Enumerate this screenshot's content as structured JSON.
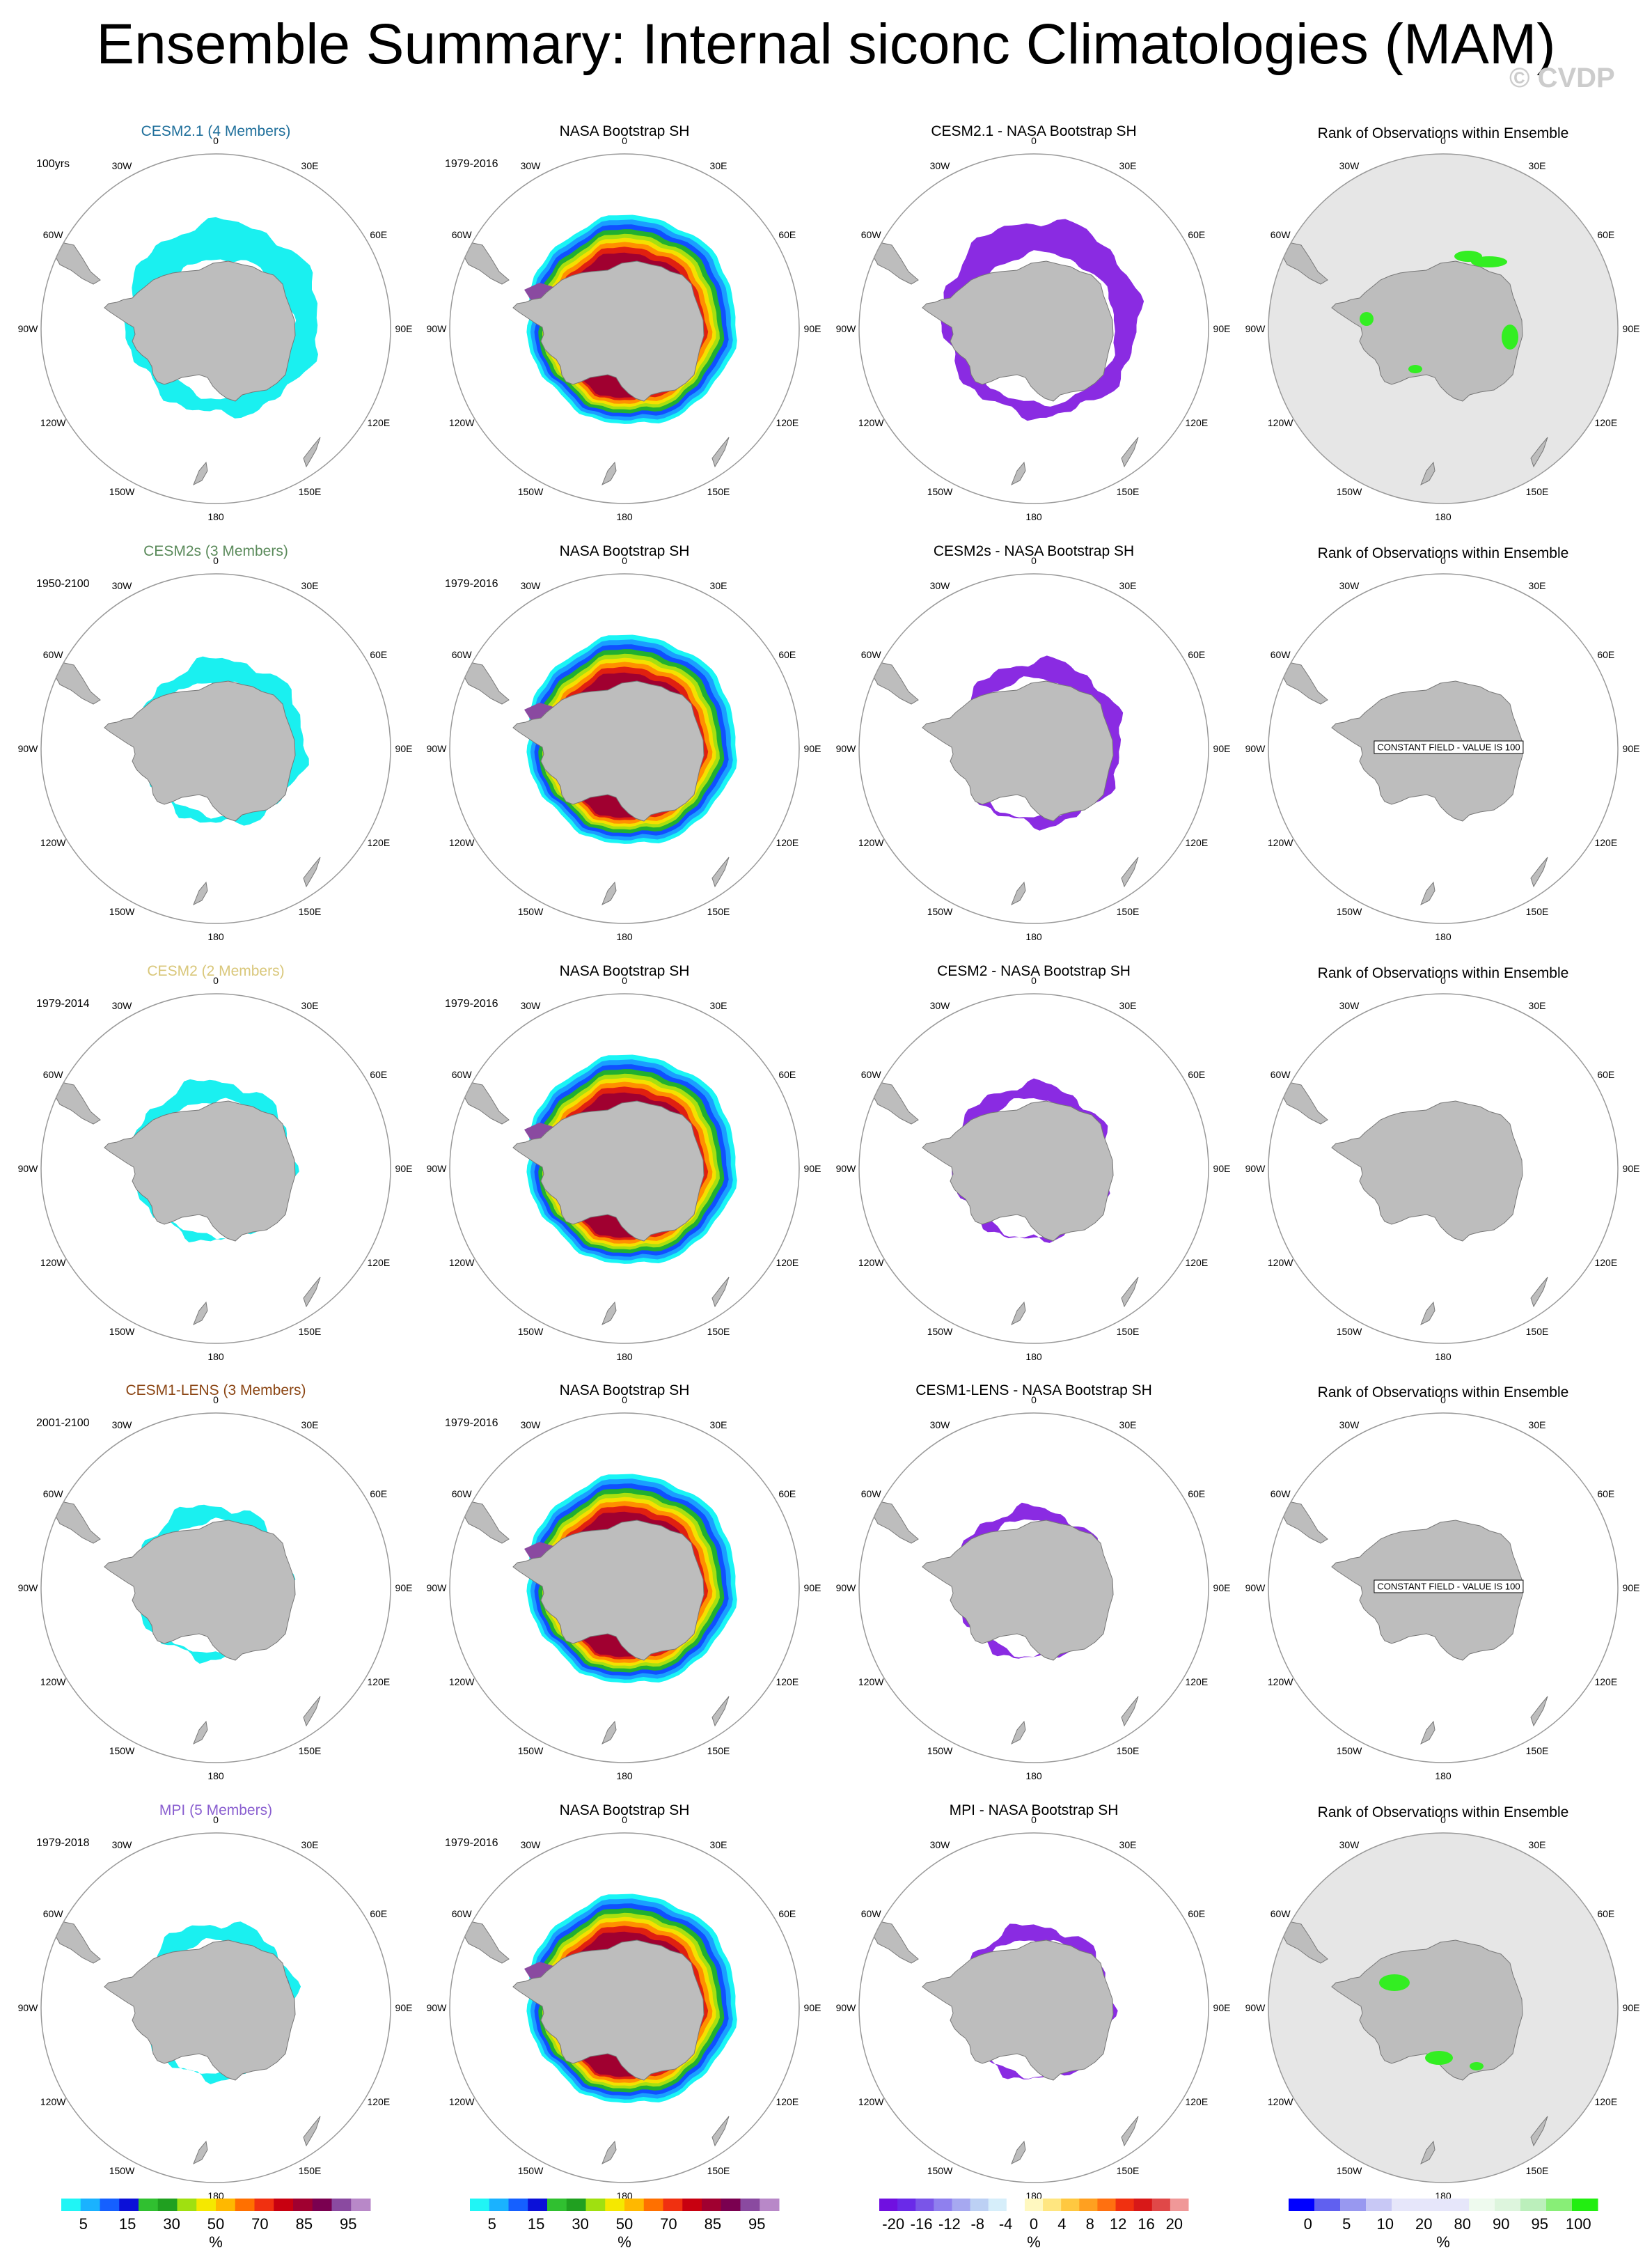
{
  "title": "Ensemble Summary: Internal siconc Climatologies (MAM)",
  "watermark": "© CVDP",
  "lon_labels": [
    "0",
    "30E",
    "60E",
    "90E",
    "120E",
    "150E",
    "180",
    "150W",
    "120W",
    "90W",
    "60W",
    "30W"
  ],
  "colors": {
    "land": "#bdbdbd",
    "rank_background": "#e6e6e6",
    "rank_green": "#33ee22",
    "model_cyan": "#1af0f0",
    "diff_purple": "#8a2be2"
  },
  "rows": [
    {
      "model_title": "CESM2.1 (4 Members)",
      "model_color": "#1f6f9b",
      "model_period": "100yrs",
      "obs_title": "NASA Bootstrap SH",
      "obs_period": "1979-2016",
      "diff_title": "CESM2.1 - NASA Bootstrap SH",
      "rank_title": "Rank of Observations within Ensemble",
      "rank_constant_text": "",
      "rank_filled": true
    },
    {
      "model_title": "CESM2s (3 Members)",
      "model_color": "#5a8a5a",
      "model_period": "1950-2100",
      "obs_title": "NASA Bootstrap SH",
      "obs_period": "1979-2016",
      "diff_title": "CESM2s - NASA Bootstrap SH",
      "rank_title": "Rank of Observations within Ensemble",
      "rank_constant_text": "CONSTANT FIELD - VALUE IS 100",
      "rank_filled": false
    },
    {
      "model_title": "CESM2 (2 Members)",
      "model_color": "#d9c77a",
      "model_period": "1979-2014",
      "obs_title": "NASA Bootstrap SH",
      "obs_period": "1979-2016",
      "diff_title": "CESM2 - NASA Bootstrap SH",
      "rank_title": "Rank of Observations within Ensemble",
      "rank_constant_text": "",
      "rank_filled": false
    },
    {
      "model_title": "CESM1-LENS (3 Members)",
      "model_color": "#8b4513",
      "model_period": "2001-2100",
      "obs_title": "NASA Bootstrap SH",
      "obs_period": "1979-2016",
      "diff_title": "CESM1-LENS - NASA Bootstrap SH",
      "rank_title": "Rank of Observations within Ensemble",
      "rank_constant_text": "CONSTANT FIELD - VALUE IS 100",
      "rank_filled": false
    },
    {
      "model_title": "MPI (5 Members)",
      "model_color": "#8a5fd0",
      "model_period": "1979-2018",
      "obs_title": "NASA Bootstrap SH",
      "obs_period": "1979-2016",
      "diff_title": "MPI - NASA Bootstrap SH",
      "rank_title": "Rank of Observations within Ensemble",
      "rank_constant_text": "",
      "rank_filled": true
    }
  ],
  "colorbars": [
    {
      "colors": [
        "#20f5f5",
        "#1ab2ff",
        "#1560ff",
        "#0b10d8",
        "#30c030",
        "#20a020",
        "#a0e010",
        "#f5e800",
        "#ffb800",
        "#ff7000",
        "#f03010",
        "#c80010",
        "#a00030",
        "#7a0050",
        "#8a4aa0",
        "#b888c8"
      ],
      "tick_labels": [
        "5",
        "15",
        "30",
        "50",
        "70",
        "85",
        "95"
      ],
      "unit": "%"
    },
    {
      "colors": [
        "#20f5f5",
        "#1ab2ff",
        "#1560ff",
        "#0b10d8",
        "#30c030",
        "#20a020",
        "#a0e010",
        "#f5e800",
        "#ffb800",
        "#ff7000",
        "#f03010",
        "#c80010",
        "#a00030",
        "#7a0050",
        "#8a4aa0",
        "#b888c8"
      ],
      "tick_labels": [
        "5",
        "15",
        "30",
        "50",
        "70",
        "85",
        "95"
      ],
      "unit": "%"
    },
    {
      "colors": [
        "#7010e0",
        "#6a2ae8",
        "#7a55e8",
        "#8f80ee",
        "#a6a8f0",
        "#bcd0f4",
        "#d6eefa",
        "#ffffff",
        "#fff8c0",
        "#ffe680",
        "#ffc840",
        "#ffa020",
        "#ff7010",
        "#f03010",
        "#d81818",
        "#e04848",
        "#f09898"
      ],
      "tick_labels": [
        "-20",
        "-16",
        "-12",
        "-8",
        "-4",
        "0",
        "4",
        "8",
        "12",
        "16",
        "20"
      ],
      "unit": "%"
    },
    {
      "colors": [
        "#0000ff",
        "#6060f0",
        "#9898f0",
        "#c8c8f5",
        "#e6e6fa",
        "#e6e6fa",
        "#e6e6fa",
        "#eefaee",
        "#ddf5dd",
        "#bbefbb",
        "#88ee77",
        "#22ee11"
      ],
      "tick_labels": [
        "0",
        "5",
        "10",
        "20",
        "80",
        "90",
        "95",
        "100"
      ],
      "unit": "%"
    }
  ]
}
